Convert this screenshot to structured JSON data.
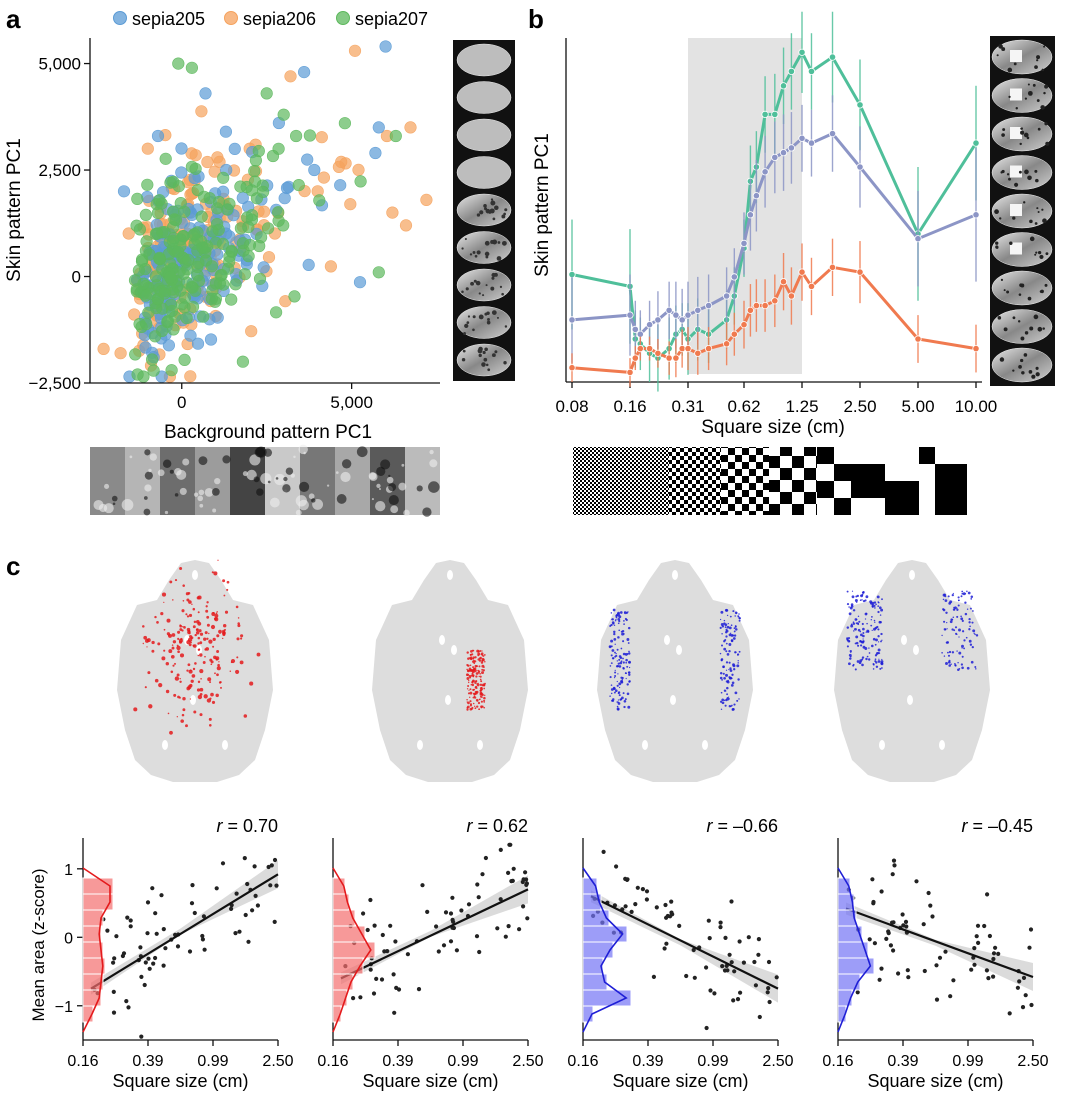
{
  "panels": {
    "a": {
      "letter": "a"
    },
    "b": {
      "letter": "b"
    },
    "c": {
      "letter": "c"
    }
  },
  "colors": {
    "sepia205": "#5b9bd5",
    "sepia206": "#f5a25d",
    "sepia207": "#5cb85c",
    "teal": "#4fbf9a",
    "purple": "#8c95c6",
    "orange": "#f07a4f",
    "red": "#e41a1c",
    "red_hist": "#f46d6d",
    "blue": "#1f1fd6",
    "blue_hist": "#7474f5",
    "shade": "#e3e3e3",
    "animal": "#dddddd"
  },
  "icons": {
    "skin_strip": "cuttlefish-skin-thumbnail-icon",
    "background_strip": "natural-texture-thumbnail-icon",
    "checkerboard_strip": "checkerboard-stimulus-icon",
    "animal_map": "cuttlefish-body-map-icon"
  },
  "chart_data": [
    {
      "id": "panel-a",
      "type": "scatter",
      "title": "",
      "xlabel": "Background pattern PC1",
      "ylabel": "Skin pattern PC1",
      "xlim": [
        -2700,
        7600
      ],
      "ylim": [
        -2500,
        5600
      ],
      "xticks": [
        {
          "value": 0,
          "label": "0"
        },
        {
          "value": 5000,
          "label": "5,000"
        }
      ],
      "yticks": [
        {
          "value": -2500,
          "label": "−2,500"
        },
        {
          "value": 0,
          "label": "0"
        },
        {
          "value": 2500,
          "label": "2,500"
        },
        {
          "value": 5000,
          "label": "5,000"
        }
      ],
      "legend": {
        "position": "top",
        "entries": [
          "sepia205",
          "sepia206",
          "sepia207"
        ]
      },
      "series": [
        {
          "name": "sepia205",
          "color_key": "sepia205",
          "n": 170,
          "sample": [
            [
              6000,
              5400
            ],
            [
              5800,
              3500
            ],
            [
              1300,
              3400
            ],
            [
              3600,
              4800
            ],
            [
              -700,
              3300
            ],
            [
              700,
              4300
            ],
            [
              3900,
              2500
            ],
            [
              -1700,
              2000
            ],
            [
              5700,
              2900
            ],
            [
              2200,
              1000
            ]
          ]
        },
        {
          "name": "sepia206",
          "color_key": "sepia206",
          "n": 190,
          "sample": [
            [
              5100,
              5300
            ],
            [
              7200,
              1800
            ],
            [
              6600,
              1200
            ],
            [
              -1000,
              3000
            ],
            [
              2000,
              3000
            ],
            [
              4000,
              2000
            ],
            [
              -2300,
              -1700
            ],
            [
              -1800,
              -1800
            ],
            [
              3200,
              4700
            ],
            [
              6200,
              1500
            ]
          ]
        },
        {
          "name": "sepia207",
          "color_key": "sepia207",
          "n": 200,
          "sample": [
            [
              -100,
              5000
            ],
            [
              300,
              4900
            ],
            [
              4800,
              3600
            ],
            [
              6300,
              3300
            ],
            [
              5800,
              100
            ],
            [
              1800,
              -2000
            ],
            [
              -1300,
              -2300
            ],
            [
              -300,
              -2200
            ],
            [
              2500,
              4300
            ],
            [
              3000,
              3800
            ]
          ]
        }
      ]
    },
    {
      "id": "panel-b",
      "type": "line",
      "title": "",
      "xlabel": "Square size (cm)",
      "ylabel": "Skin pattern PC1",
      "x": [
        0.08,
        0.16,
        0.17,
        0.18,
        0.2,
        0.22,
        0.25,
        0.27,
        0.29,
        0.31,
        0.35,
        0.4,
        0.5,
        0.55,
        0.62,
        0.67,
        0.72,
        0.8,
        0.9,
        1.0,
        1.1,
        1.25,
        1.4,
        1.8,
        2.5,
        5.0,
        10.0
      ],
      "xticks": [
        "0.08",
        "0.16",
        "0.31",
        "0.62",
        "1.25",
        "2.50",
        "5.00",
        "10.00"
      ],
      "ylim": [
        -2000,
        5200
      ],
      "shaded_region": [
        0.31,
        1.25
      ],
      "series": [
        {
          "name": "green",
          "color_key": "teal",
          "values": [
            250,
            0,
            -1100,
            -1200,
            -1400,
            -1500,
            -1300,
            -1000,
            -900,
            -1100,
            -900,
            -1000,
            -700,
            -200,
            800,
            2200,
            2500,
            3600,
            3600,
            4200,
            4500,
            4900,
            4500,
            4800,
            3800,
            1100,
            3000
          ],
          "err": [
            2300,
            2400,
            1200,
            1100,
            1200,
            1400,
            1300,
            1200,
            1100,
            1500,
            1300,
            1200,
            1200,
            1200,
            1200,
            1500,
            1500,
            1600,
            1700,
            1600,
            1600,
            1700,
            1600,
            1900,
            1900,
            2800,
            2400
          ]
        },
        {
          "name": "purple",
          "color_key": "purple",
          "values": [
            -700,
            -600,
            -900,
            -1000,
            -800,
            -700,
            -500,
            -600,
            -700,
            -600,
            -500,
            -400,
            -200,
            200,
            900,
            1500,
            1900,
            2400,
            2700,
            2800,
            2900,
            3100,
            3000,
            3200,
            2500,
            1000,
            1500
          ],
          "err": [
            1800,
            1700,
            1200,
            1000,
            1000,
            1200,
            1200,
            1400,
            1300,
            1400,
            1400,
            1300,
            1200,
            1200,
            1300,
            1500,
            1500,
            1500,
            1500,
            1600,
            1500,
            1400,
            1400,
            1600,
            1700,
            2000,
            2800
          ]
        },
        {
          "name": "orange",
          "color_key": "orange",
          "values": [
            -1700,
            -1800,
            -1500,
            -1300,
            -1300,
            -1400,
            -1500,
            -1500,
            -1300,
            -1300,
            -1400,
            -1300,
            -1200,
            -1000,
            -800,
            -500,
            -400,
            -400,
            -300,
            100,
            -200,
            300,
            0,
            400,
            300,
            -1100,
            -1300
          ],
          "err": [
            600,
            600,
            500,
            500,
            500,
            600,
            700,
            800,
            800,
            900,
            900,
            900,
            900,
            900,
            1000,
            1100,
            1100,
            1100,
            1100,
            1200,
            1200,
            1200,
            1200,
            1200,
            1300,
            1000,
            1000
          ]
        }
      ]
    },
    {
      "id": "panel-c1",
      "type": "scatter",
      "r_label": "r",
      "r_text": " = 0.70",
      "xlabel": "Square size (cm)",
      "ylabel": "Mean area (z-score)",
      "xticks": [
        "0.16",
        "0.39",
        "0.99",
        "2.50"
      ],
      "yticks": [
        {
          "value": -1,
          "label": "−1"
        },
        {
          "value": 0,
          "label": "0"
        },
        {
          "value": 1,
          "label": "1"
        }
      ],
      "ylim": [
        -1.5,
        1.45
      ],
      "fit": {
        "y_start": -0.75,
        "y_end": 0.92
      },
      "hist_color_key": "red_hist",
      "line_color_key": "red"
    },
    {
      "id": "panel-c2",
      "type": "scatter",
      "r_label": "r",
      "r_text": " = 0.62",
      "xlabel": "Square size (cm)",
      "xticks": [
        "0.16",
        "0.39",
        "0.99",
        "2.50"
      ],
      "ylim": [
        -1.5,
        1.45
      ],
      "fit": {
        "y_start": -0.6,
        "y_end": 0.7
      },
      "hist_color_key": "red_hist",
      "line_color_key": "red"
    },
    {
      "id": "panel-c3",
      "type": "scatter",
      "r_label": "r",
      "r_text": " = –0.66",
      "xlabel": "Square size (cm)",
      "xticks": [
        "0.16",
        "0.39",
        "0.99",
        "2.50"
      ],
      "ylim": [
        -1.5,
        1.45
      ],
      "fit": {
        "y_start": 0.6,
        "y_end": -0.75
      },
      "hist_color_key": "blue_hist",
      "line_color_key": "blue"
    },
    {
      "id": "panel-c4",
      "type": "scatter",
      "r_label": "r",
      "r_text": " = –0.45",
      "xlabel": "Square size (cm)",
      "xticks": [
        "0.16",
        "0.39",
        "0.99",
        "2.50"
      ],
      "ylim": [
        -1.5,
        1.45
      ],
      "fit": {
        "y_start": 0.42,
        "y_end": -0.58
      },
      "hist_color_key": "blue_hist",
      "line_color_key": "blue"
    }
  ]
}
